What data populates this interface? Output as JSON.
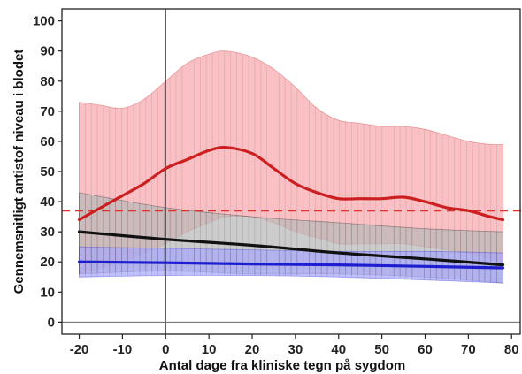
{
  "chart_data": {
    "type": "line",
    "title": "",
    "xlabel": "Antal dage fra kliniske tegn på sygdom",
    "ylabel": "Gennemsnitligt antistof niveau i blodet",
    "xlim": [
      -24,
      82
    ],
    "ylim": [
      -4,
      104
    ],
    "x_ticks": [
      "-20",
      "-10",
      "0",
      "10",
      "20",
      "30",
      "40",
      "50",
      "60",
      "70",
      "80"
    ],
    "y_ticks": [
      "0",
      "10",
      "20",
      "30",
      "40",
      "50",
      "60",
      "70",
      "80",
      "90",
      "100"
    ],
    "grid": false,
    "vertical_reference_x": 0,
    "horizontal_reference_y": 0,
    "threshold": {
      "y": 37,
      "color": "#e03030",
      "style": "dashed"
    },
    "series": [
      {
        "color": "#cc1f1f",
        "band_color": "#f4a9ae",
        "x": [
          -20,
          -15,
          -10,
          -5,
          0,
          5,
          10,
          14,
          20,
          25,
          30,
          35,
          40,
          45,
          50,
          55,
          60,
          65,
          70,
          75,
          78
        ],
        "y": [
          34,
          38,
          42,
          46,
          51,
          54,
          57,
          58,
          56,
          51,
          46,
          43,
          41,
          41,
          41,
          41.5,
          40,
          38,
          37,
          35,
          34
        ],
        "lower": [
          16,
          18,
          20,
          23,
          26,
          30,
          33,
          35,
          35,
          33,
          30,
          28,
          26,
          26,
          26,
          26,
          25,
          24,
          23,
          21,
          20
        ],
        "upper": [
          73,
          72,
          71,
          74,
          80,
          86,
          89,
          90,
          88,
          84,
          78,
          71,
          67,
          66,
          65,
          65,
          64,
          62,
          60,
          59,
          59
        ]
      },
      {
        "color": "#111111",
        "band_color": "#b8b8b8",
        "x": [
          -20,
          0,
          20,
          40,
          60,
          78
        ],
        "y": [
          30,
          27.5,
          25.5,
          23,
          21,
          19
        ],
        "lower": [
          16,
          17,
          16,
          16,
          15,
          13
        ],
        "upper": [
          43,
          38,
          35,
          33,
          31,
          30
        ]
      },
      {
        "color": "#1e1ed0",
        "band_color": "#a8a8f8",
        "x": [
          -20,
          0,
          20,
          40,
          60,
          78
        ],
        "y": [
          20,
          19.7,
          19.3,
          19,
          18.5,
          18
        ],
        "lower": [
          15,
          15.5,
          15.5,
          15,
          14,
          13
        ],
        "upper": [
          25,
          24.5,
          24,
          23.5,
          23.5,
          23
        ]
      }
    ]
  }
}
